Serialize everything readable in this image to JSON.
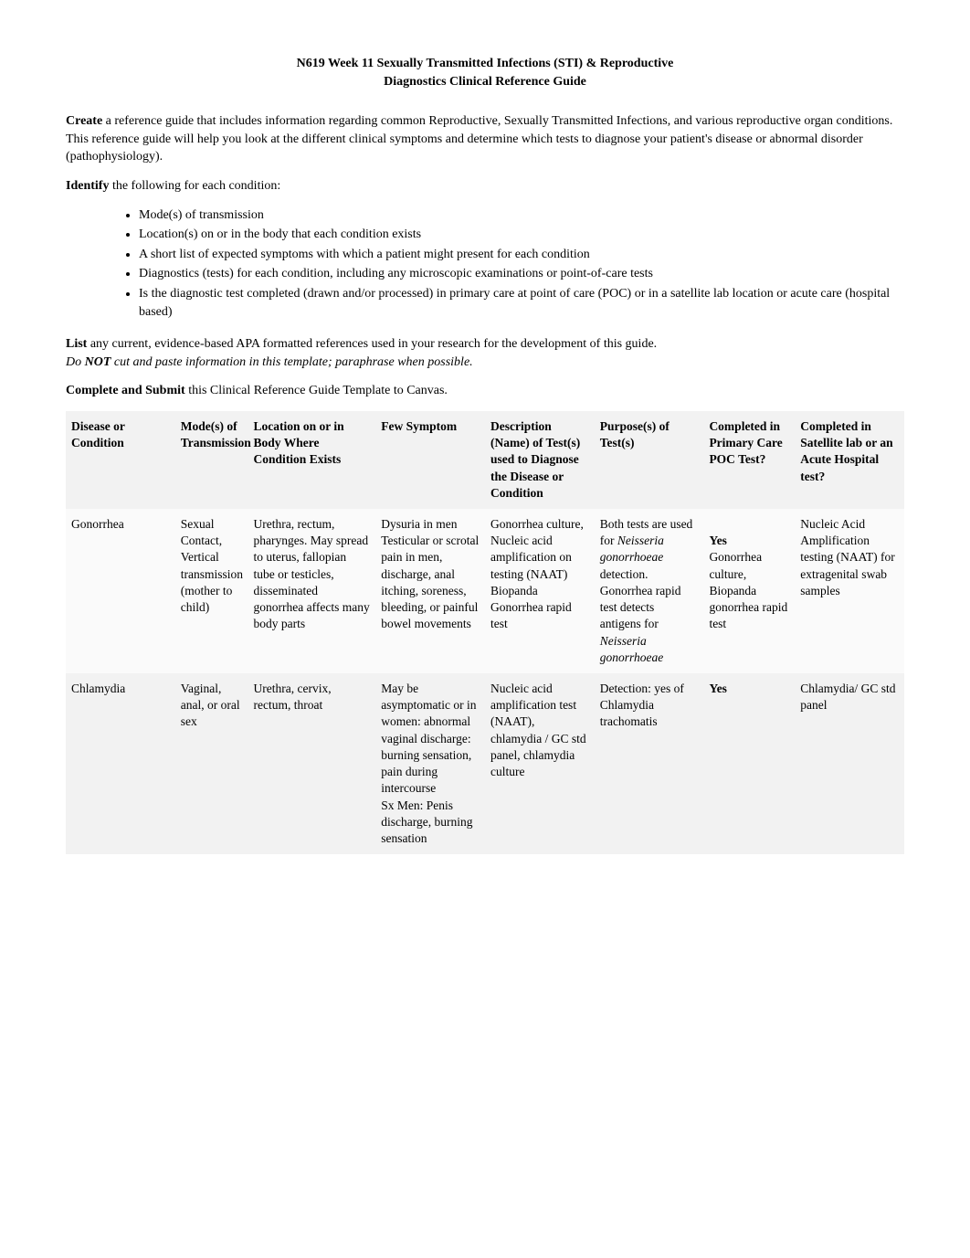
{
  "title_line1": "N619 Week 11 Sexually Transmitted Infections (STI) & Reproductive",
  "title_line2": "Diagnostics Clinical Reference Guide",
  "intro_strong": "Create",
  "intro_rest": " a reference guide that includes information regarding common Reproductive, Sexually Transmitted Infections, and various reproductive organ conditions. This reference guide will help you look at the different clinical symptoms and determine which tests to diagnose your patient's disease or abnormal disorder (pathophysiology).",
  "identify_strong": "Identify",
  "identify_rest": " the following for each condition:",
  "bullets": [
    "Mode(s) of transmission",
    "Location(s) on or in the body that each condition exists",
    "A short list of expected symptoms with which a patient might present for each condition",
    "Diagnostics (tests) for each condition, including any microscopic examinations or point-of-care tests",
    "Is the diagnostic test completed (drawn and/or processed) in primary care at point of care (POC) or in a satellite lab location or acute care (hospital based)"
  ],
  "list_strong": "List",
  "list_rest": " any current, evidence-based APA formatted references used in your research for the development of this guide.",
  "list_note_pre": "Do ",
  "list_note_bold": "NOT",
  "list_note_post": " cut and paste information in this template; paraphrase when possible.",
  "submit_strong": "Complete and Submit",
  "submit_rest": " this Clinical Reference Guide Template to Canvas.",
  "table": {
    "headers": [
      "Disease or Condition",
      "Mode(s) of Transmission",
      "Location on or in Body Where Condition Exists",
      "Few Symptom",
      "Description (Name) of Test(s) used to Diagnose the Disease or Condition",
      "Purpose(s) of Test(s)",
      "Completed in Primary Care POC Test?",
      "Completed in Satellite lab or an Acute Hospital test?"
    ],
    "rows": [
      {
        "c0": "Gonorrhea",
        "c1": "Sexual Contact, Vertical transmission (mother to child)",
        "c2": "Urethra, rectum, pharynges. May spread to uterus, fallopian tube or testicles, disseminated gonorrhea affects many body parts",
        "c3": "Dysuria in men\nTesticular or scrotal pain in men, discharge, anal itching, soreness, bleeding, or painful bowel movements",
        "c4": "Gonorrhea culture, Nucleic acid amplification on testing (NAAT) Biopanda Gonorrhea rapid test",
        "c5_pre": "Both tests are used for ",
        "c5_it1": "Neisseria gonorrhoeae",
        "c5_mid": " detection. Gonorrhea rapid test detects antigens for ",
        "c5_it2": "Neisseria gonorrhoeae",
        "c6_bold": "Yes",
        "c6_rest": "\nGonorrhea culture, Biopanda gonorrhea rapid test",
        "c7": "Nucleic Acid Amplification testing (NAAT) for extragenital swab samples"
      },
      {
        "c0": "Chlamydia",
        "c1": "Vaginal, anal, or oral sex",
        "c2": "Urethra, cervix, rectum, throat",
        "c3": "May be asymptomatic or in women: abnormal vaginal discharge: burning sensation, pain during intercourse\nSx Men: Penis discharge, burning sensation",
        "c4": "Nucleic acid amplification test (NAAT), chlamydia / GC std panel, chlamydia culture",
        "c5_plain": "Detection: yes of Chlamydia trachomatis",
        "c6_bold": "Yes",
        "c7": "Chlamydia/ GC std panel"
      }
    ]
  }
}
